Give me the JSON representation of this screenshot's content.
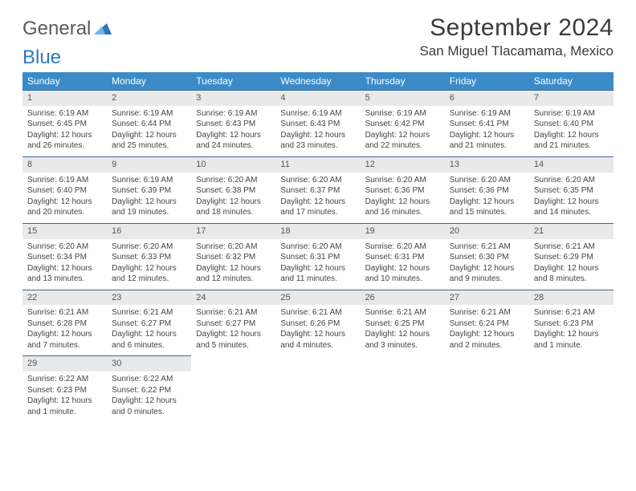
{
  "logo": {
    "text1": "General",
    "text2": "Blue"
  },
  "title": "September 2024",
  "location": "San Miguel Tlacamama, Mexico",
  "colors": {
    "header_bg": "#3b8bc8",
    "header_text": "#ffffff",
    "daynum_bg": "#e9e9e9",
    "border": "#3b6a9a",
    "logo_gray": "#5a5a5a",
    "logo_blue": "#2f77bb"
  },
  "weekdays": [
    "Sunday",
    "Monday",
    "Tuesday",
    "Wednesday",
    "Thursday",
    "Friday",
    "Saturday"
  ],
  "days": [
    {
      "n": "1",
      "sr": "6:19 AM",
      "ss": "6:45 PM",
      "dl": "12 hours and 26 minutes."
    },
    {
      "n": "2",
      "sr": "6:19 AM",
      "ss": "6:44 PM",
      "dl": "12 hours and 25 minutes."
    },
    {
      "n": "3",
      "sr": "6:19 AM",
      "ss": "6:43 PM",
      "dl": "12 hours and 24 minutes."
    },
    {
      "n": "4",
      "sr": "6:19 AM",
      "ss": "6:43 PM",
      "dl": "12 hours and 23 minutes."
    },
    {
      "n": "5",
      "sr": "6:19 AM",
      "ss": "6:42 PM",
      "dl": "12 hours and 22 minutes."
    },
    {
      "n": "6",
      "sr": "6:19 AM",
      "ss": "6:41 PM",
      "dl": "12 hours and 21 minutes."
    },
    {
      "n": "7",
      "sr": "6:19 AM",
      "ss": "6:40 PM",
      "dl": "12 hours and 21 minutes."
    },
    {
      "n": "8",
      "sr": "6:19 AM",
      "ss": "6:40 PM",
      "dl": "12 hours and 20 minutes."
    },
    {
      "n": "9",
      "sr": "6:19 AM",
      "ss": "6:39 PM",
      "dl": "12 hours and 19 minutes."
    },
    {
      "n": "10",
      "sr": "6:20 AM",
      "ss": "6:38 PM",
      "dl": "12 hours and 18 minutes."
    },
    {
      "n": "11",
      "sr": "6:20 AM",
      "ss": "6:37 PM",
      "dl": "12 hours and 17 minutes."
    },
    {
      "n": "12",
      "sr": "6:20 AM",
      "ss": "6:36 PM",
      "dl": "12 hours and 16 minutes."
    },
    {
      "n": "13",
      "sr": "6:20 AM",
      "ss": "6:36 PM",
      "dl": "12 hours and 15 minutes."
    },
    {
      "n": "14",
      "sr": "6:20 AM",
      "ss": "6:35 PM",
      "dl": "12 hours and 14 minutes."
    },
    {
      "n": "15",
      "sr": "6:20 AM",
      "ss": "6:34 PM",
      "dl": "12 hours and 13 minutes."
    },
    {
      "n": "16",
      "sr": "6:20 AM",
      "ss": "6:33 PM",
      "dl": "12 hours and 12 minutes."
    },
    {
      "n": "17",
      "sr": "6:20 AM",
      "ss": "6:32 PM",
      "dl": "12 hours and 12 minutes."
    },
    {
      "n": "18",
      "sr": "6:20 AM",
      "ss": "6:31 PM",
      "dl": "12 hours and 11 minutes."
    },
    {
      "n": "19",
      "sr": "6:20 AM",
      "ss": "6:31 PM",
      "dl": "12 hours and 10 minutes."
    },
    {
      "n": "20",
      "sr": "6:21 AM",
      "ss": "6:30 PM",
      "dl": "12 hours and 9 minutes."
    },
    {
      "n": "21",
      "sr": "6:21 AM",
      "ss": "6:29 PM",
      "dl": "12 hours and 8 minutes."
    },
    {
      "n": "22",
      "sr": "6:21 AM",
      "ss": "6:28 PM",
      "dl": "12 hours and 7 minutes."
    },
    {
      "n": "23",
      "sr": "6:21 AM",
      "ss": "6:27 PM",
      "dl": "12 hours and 6 minutes."
    },
    {
      "n": "24",
      "sr": "6:21 AM",
      "ss": "6:27 PM",
      "dl": "12 hours and 5 minutes."
    },
    {
      "n": "25",
      "sr": "6:21 AM",
      "ss": "6:26 PM",
      "dl": "12 hours and 4 minutes."
    },
    {
      "n": "26",
      "sr": "6:21 AM",
      "ss": "6:25 PM",
      "dl": "12 hours and 3 minutes."
    },
    {
      "n": "27",
      "sr": "6:21 AM",
      "ss": "6:24 PM",
      "dl": "12 hours and 2 minutes."
    },
    {
      "n": "28",
      "sr": "6:21 AM",
      "ss": "6:23 PM",
      "dl": "12 hours and 1 minute."
    },
    {
      "n": "29",
      "sr": "6:22 AM",
      "ss": "6:23 PM",
      "dl": "12 hours and 1 minute."
    },
    {
      "n": "30",
      "sr": "6:22 AM",
      "ss": "6:22 PM",
      "dl": "12 hours and 0 minutes."
    }
  ],
  "labels": {
    "sunrise": "Sunrise: ",
    "sunset": "Sunset: ",
    "daylight": "Daylight: "
  }
}
